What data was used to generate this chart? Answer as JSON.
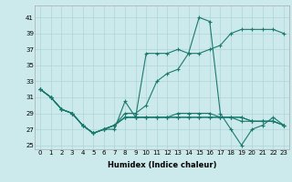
{
  "title": "",
  "xlabel": "Humidex (Indice chaleur)",
  "ylabel": "",
  "bg_color": "#cce9ec",
  "line_color": "#1a7a6e",
  "grid_color": "#add4d8",
  "xlim": [
    -0.5,
    23.5
  ],
  "ylim": [
    24.5,
    42.5
  ],
  "yticks": [
    25,
    27,
    29,
    31,
    33,
    35,
    37,
    39,
    41
  ],
  "xticks": [
    0,
    1,
    2,
    3,
    4,
    5,
    6,
    7,
    8,
    9,
    10,
    11,
    12,
    13,
    14,
    15,
    16,
    17,
    18,
    19,
    20,
    21,
    22,
    23
  ],
  "series": [
    [
      32.0,
      31.0,
      29.5,
      29.0,
      27.5,
      26.5,
      27.0,
      27.5,
      28.5,
      28.5,
      28.5,
      28.5,
      28.5,
      28.5,
      28.5,
      28.5,
      28.5,
      28.5,
      28.5,
      28.5,
      28.0,
      28.0,
      28.0,
      27.5
    ],
    [
      32.0,
      31.0,
      29.5,
      29.0,
      27.5,
      26.5,
      27.0,
      27.5,
      28.5,
      28.5,
      28.5,
      28.5,
      28.5,
      28.5,
      28.5,
      28.5,
      28.5,
      28.5,
      28.5,
      28.5,
      28.0,
      28.0,
      28.0,
      27.5
    ],
    [
      32.0,
      31.0,
      29.5,
      29.0,
      27.5,
      26.5,
      27.0,
      27.5,
      28.5,
      28.5,
      28.5,
      28.5,
      28.5,
      29.0,
      29.0,
      29.0,
      29.0,
      28.5,
      28.5,
      28.0,
      28.0,
      28.0,
      28.0,
      27.5
    ],
    [
      32.0,
      31.0,
      29.5,
      29.0,
      27.5,
      26.5,
      27.0,
      27.5,
      29.0,
      29.0,
      30.0,
      33.0,
      34.0,
      34.5,
      36.5,
      36.5,
      37.0,
      37.5,
      39.0,
      39.5,
      39.5,
      39.5,
      39.5,
      39.0
    ],
    [
      32.0,
      31.0,
      29.5,
      29.0,
      27.5,
      26.5,
      27.0,
      27.0,
      30.5,
      28.5,
      36.5,
      36.5,
      36.5,
      37.0,
      36.5,
      41.0,
      40.5,
      29.0,
      27.0,
      25.0,
      27.0,
      27.5,
      28.5,
      27.5
    ]
  ]
}
